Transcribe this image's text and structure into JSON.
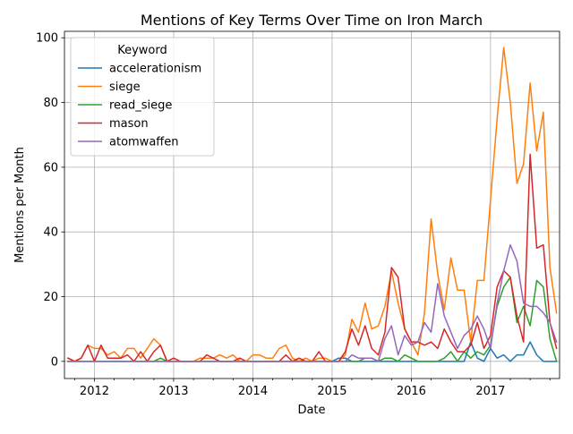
{
  "chart_data": {
    "type": "line",
    "title": "Mentions of Key Terms Over Time on Iron March",
    "xlabel": "Date",
    "ylabel": "Mentions per Month",
    "x_start": "2011-09",
    "x_end": "2017-11",
    "x_range": [
      "2011-08-15",
      "2017-11-15"
    ],
    "ylim": [
      -5.3,
      102
    ],
    "x_ticks": [
      {
        "label": "2012",
        "date": "2012-01"
      },
      {
        "label": "2013",
        "date": "2013-01"
      },
      {
        "label": "2014",
        "date": "2014-01"
      },
      {
        "label": "2015",
        "date": "2015-01"
      },
      {
        "label": "2016",
        "date": "2016-01"
      },
      {
        "label": "2017",
        "date": "2017-01"
      }
    ],
    "y_ticks": [
      0,
      20,
      40,
      60,
      80,
      100
    ],
    "grid": true,
    "legend": {
      "title": "Keyword",
      "placement": "top-left"
    },
    "series": [
      {
        "name": "accelerationism",
        "color": "#1f77b4",
        "values": [
          0,
          0,
          0,
          0,
          0,
          0,
          0,
          0,
          0,
          0,
          0,
          0,
          0,
          0,
          0,
          0,
          0,
          0,
          0,
          0,
          0,
          0,
          0,
          0,
          0,
          0,
          0,
          0,
          0,
          0,
          0,
          0,
          0,
          0,
          0,
          0,
          0,
          0,
          0,
          0,
          0,
          1,
          1,
          0,
          0,
          0,
          0,
          0,
          0,
          0,
          0,
          0,
          0,
          0,
          0,
          0,
          0,
          0,
          0,
          0,
          0,
          6,
          1,
          0,
          4,
          1,
          2,
          0,
          2,
          2,
          6,
          2,
          0,
          0,
          0
        ]
      },
      {
        "name": "siege",
        "color": "#ff7f0e",
        "values": [
          1,
          0,
          1,
          5,
          4,
          4,
          2,
          3,
          1,
          4,
          4,
          1,
          4,
          7,
          5,
          0,
          0,
          0,
          0,
          0,
          1,
          1,
          1,
          2,
          1,
          2,
          0,
          0,
          2,
          2,
          1,
          1,
          4,
          5,
          1,
          0,
          1,
          0,
          1,
          1,
          0,
          0,
          2,
          13,
          9,
          18,
          10,
          11,
          17,
          28,
          18,
          10,
          6,
          2,
          15,
          44,
          27,
          16,
          32,
          22,
          22,
          6,
          25,
          25,
          50,
          75,
          97,
          80,
          55,
          61,
          86,
          65,
          77,
          29,
          15
        ]
      },
      {
        "name": "read_siege",
        "color": "#2ca02c",
        "values": [
          0,
          0,
          0,
          0,
          0,
          0,
          0,
          0,
          0,
          0,
          0,
          0,
          0,
          0,
          1,
          0,
          0,
          0,
          0,
          0,
          0,
          0,
          0,
          0,
          0,
          0,
          0,
          0,
          0,
          0,
          0,
          0,
          0,
          0,
          0,
          0,
          0,
          0,
          0,
          0,
          0,
          0,
          0,
          0,
          0,
          1,
          1,
          0,
          1,
          1,
          0,
          2,
          1,
          0,
          0,
          0,
          0,
          1,
          3,
          0,
          3,
          1,
          3,
          2,
          5,
          17,
          23,
          26,
          12,
          17,
          11,
          25,
          23,
          7,
          0
        ]
      },
      {
        "name": "mason",
        "color": "#d62728",
        "values": [
          1,
          0,
          1,
          5,
          0,
          5,
          1,
          1,
          1,
          2,
          0,
          3,
          0,
          3,
          5,
          0,
          1,
          0,
          0,
          0,
          0,
          2,
          1,
          0,
          0,
          0,
          1,
          0,
          0,
          0,
          0,
          0,
          0,
          2,
          0,
          1,
          0,
          0,
          3,
          0,
          0,
          0,
          3,
          10,
          5,
          11,
          4,
          2,
          9,
          29,
          26,
          10,
          6,
          6,
          5,
          6,
          4,
          10,
          6,
          3,
          3,
          5,
          12,
          4,
          8,
          23,
          28,
          26,
          14,
          6,
          64,
          35,
          36,
          12,
          4
        ]
      },
      {
        "name": "atomwaffen",
        "color": "#9467bd",
        "values": [
          0,
          0,
          0,
          0,
          0,
          0,
          0,
          0,
          0,
          0,
          0,
          0,
          0,
          0,
          0,
          0,
          0,
          0,
          0,
          0,
          0,
          0,
          0,
          0,
          0,
          0,
          0,
          0,
          0,
          0,
          0,
          0,
          0,
          0,
          0,
          0,
          0,
          0,
          0,
          0,
          0,
          0,
          0,
          2,
          1,
          1,
          1,
          0,
          7,
          11,
          2,
          8,
          5,
          6,
          12,
          9,
          24,
          14,
          9,
          4,
          8,
          10,
          14,
          10,
          4,
          18,
          28,
          36,
          31,
          18,
          17,
          17,
          15,
          12,
          6
        ]
      }
    ]
  }
}
